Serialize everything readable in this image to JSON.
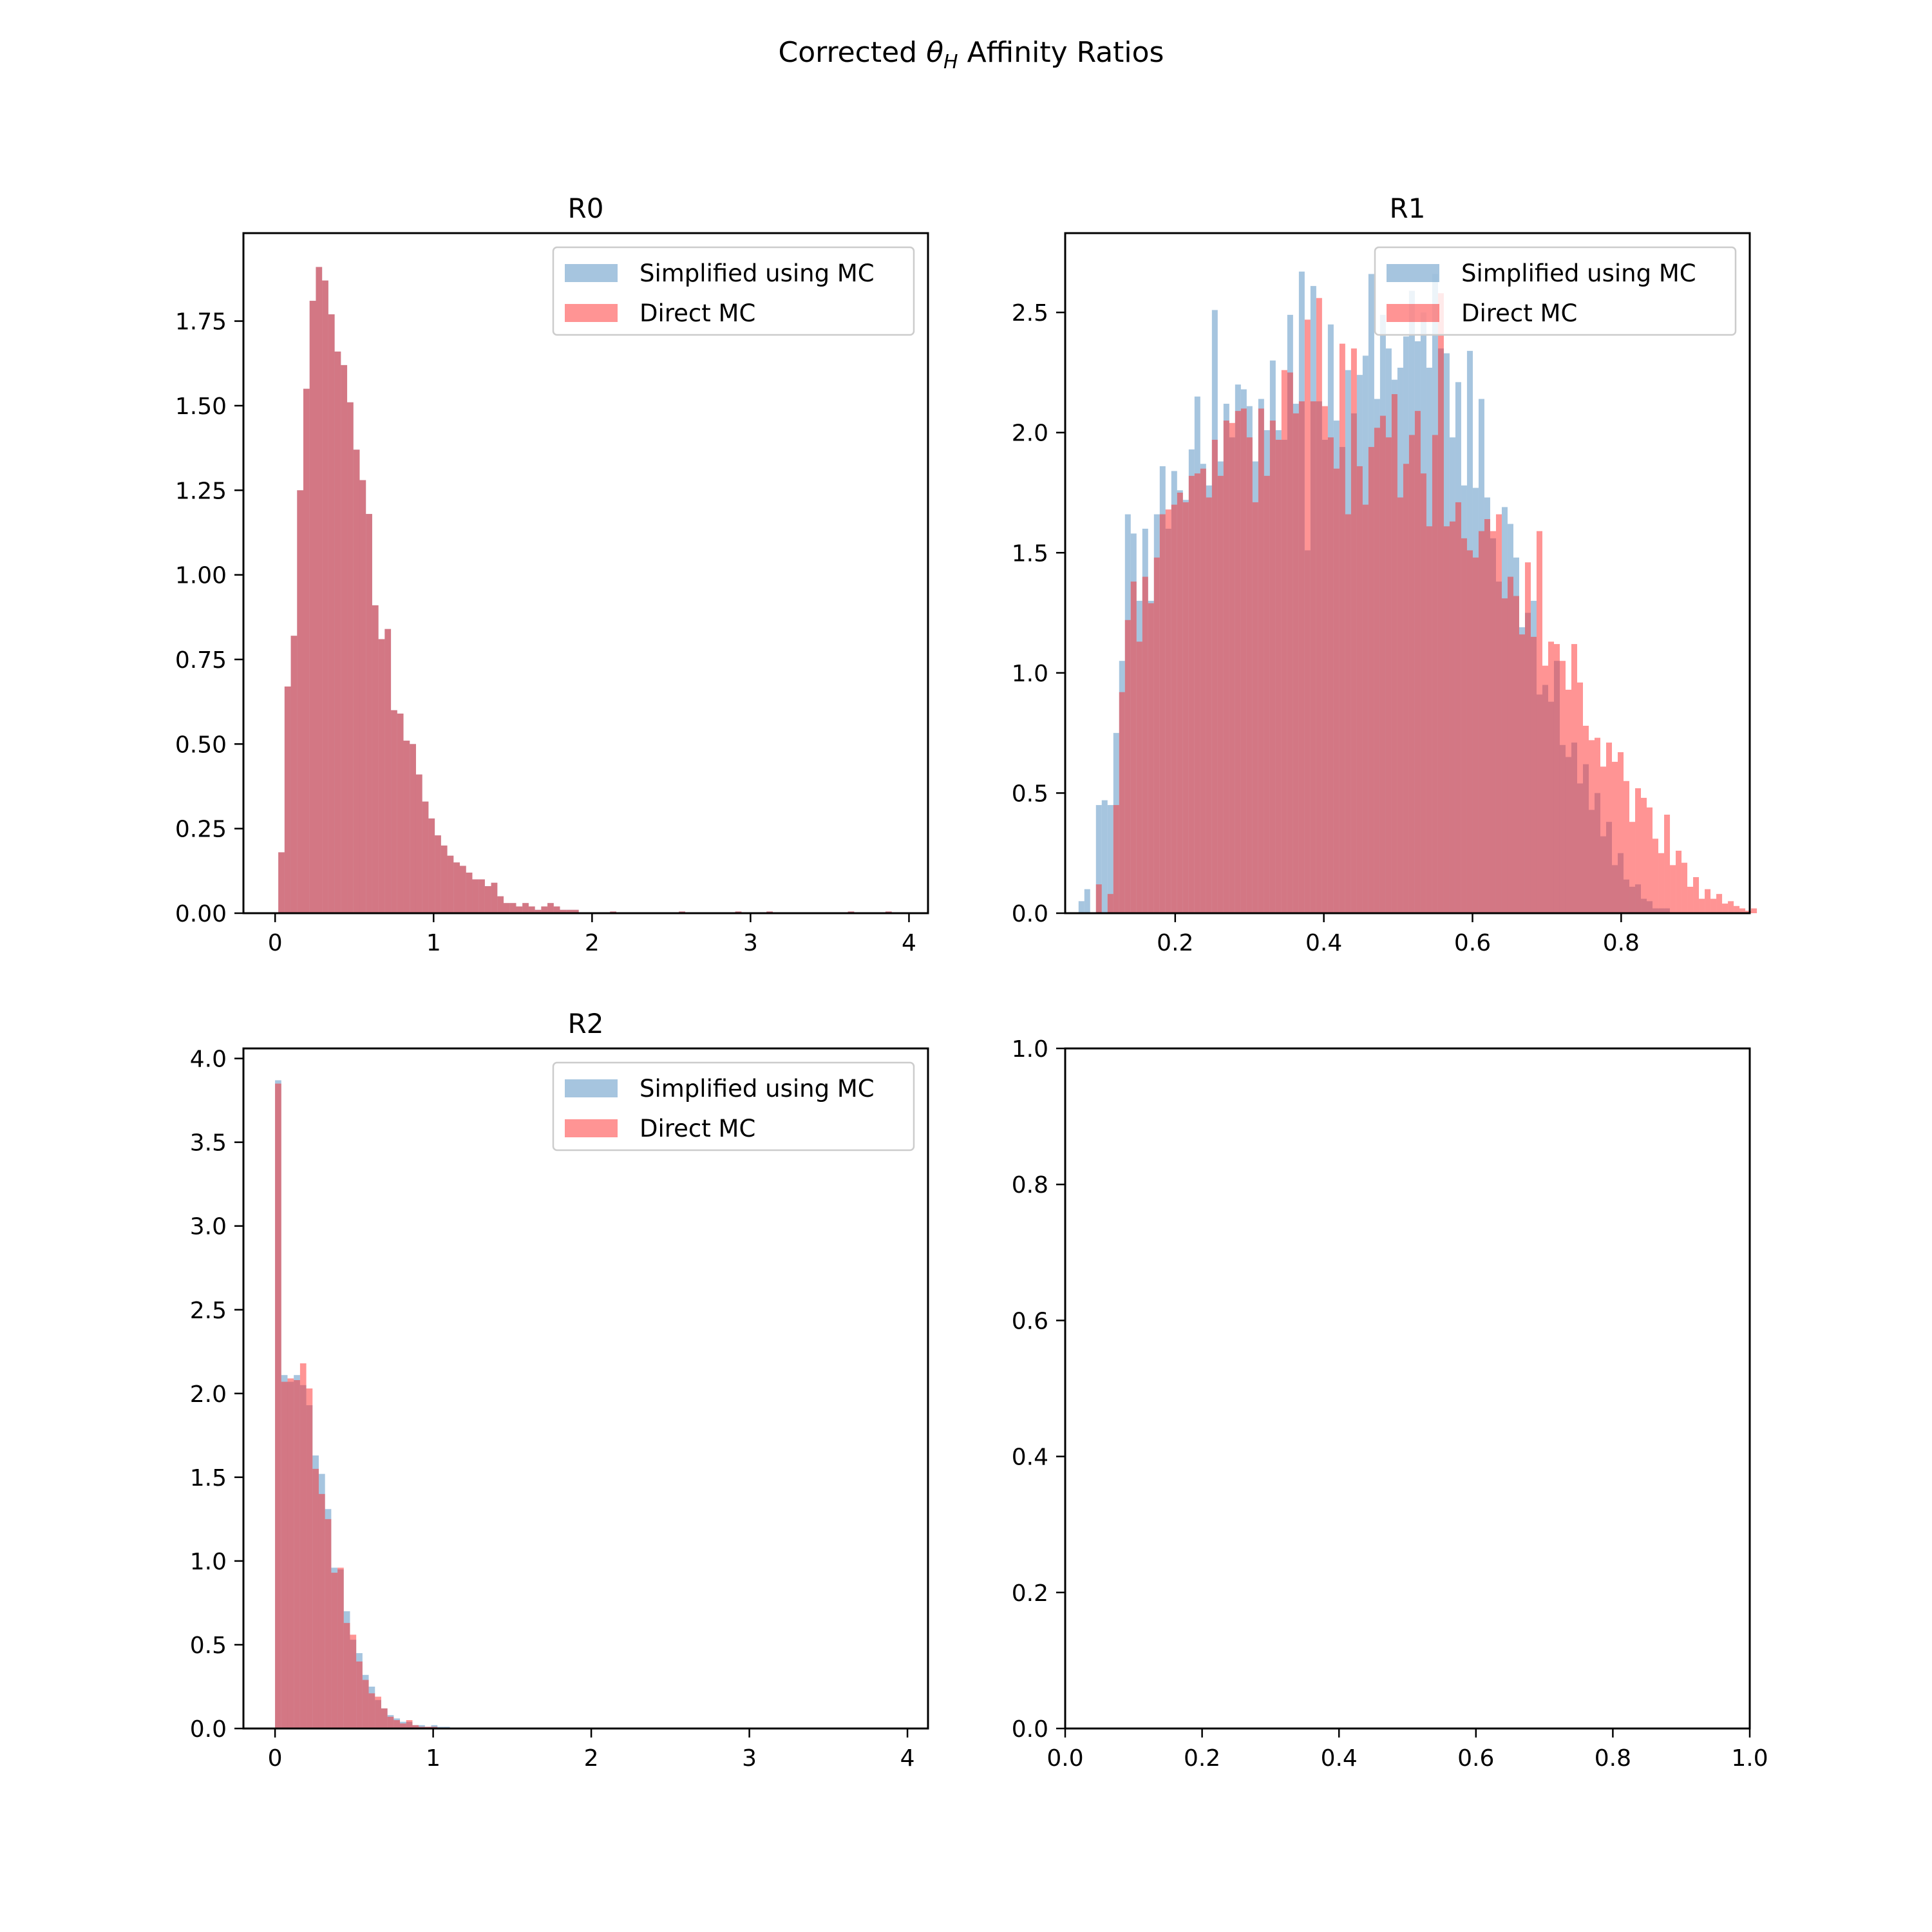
{
  "figure": {
    "title_pre": "Corrected ",
    "title_theta": "θ",
    "title_sub": "H",
    "title_post": " Affinity Ratios"
  },
  "colors": {
    "simplified": "#6a9ec9",
    "direct": "#ff2a2a",
    "overlap": "#c97985"
  },
  "chart_data": [
    {
      "type": "histogram",
      "title": "R0",
      "xlim": [
        -0.2,
        4.12
      ],
      "ylim": [
        0,
        2.01
      ],
      "xticks": [
        0,
        1,
        2,
        3,
        4
      ],
      "xtick_labels": [
        "0",
        "1",
        "2",
        "3",
        "4"
      ],
      "yticks": [
        0,
        0.25,
        0.5,
        0.75,
        1.0,
        1.25,
        1.5,
        1.75
      ],
      "ytick_labels": [
        "0.00",
        "0.25",
        "0.50",
        "0.75",
        "1.00",
        "1.25",
        "1.50",
        "1.75"
      ],
      "legend": {
        "position": "upper right",
        "entries": [
          "Simplified using MC",
          "Direct MC"
        ]
      },
      "bin_start": 0.02,
      "bin_width": 0.0395,
      "series": [
        {
          "name": "Simplified using MC",
          "values": [
            0.18,
            0.67,
            0.82,
            1.25,
            1.55,
            1.81,
            1.91,
            1.87,
            1.77,
            1.66,
            1.62,
            1.51,
            1.37,
            1.28,
            1.18,
            0.91,
            0.81,
            0.84,
            0.6,
            0.59,
            0.51,
            0.5,
            0.41,
            0.33,
            0.28,
            0.23,
            0.2,
            0.17,
            0.15,
            0.14,
            0.12,
            0.1,
            0.1,
            0.08,
            0.09,
            0.05,
            0.03,
            0.03,
            0.02,
            0.03,
            0.02,
            0.01,
            0.02,
            0.03,
            0.02,
            0.01,
            0.01,
            0.01,
            0.0,
            0.0,
            0.0,
            0.0,
            0.0,
            0.005,
            0.0,
            0.0,
            0.0,
            0.0,
            0.0,
            0.0,
            0.0,
            0.0,
            0.0,
            0.0,
            0.005,
            0.0,
            0.0,
            0.0,
            0.0,
            0.0,
            0.0,
            0.0,
            0.0,
            0.005,
            0.0,
            0.0,
            0.0,
            0.0,
            0.005,
            0.0,
            0.0,
            0.0,
            0.0,
            0.0,
            0.0,
            0.0,
            0.0,
            0.0,
            0.0,
            0.0,
            0.0,
            0.005,
            0.0,
            0.0,
            0.0,
            0.0,
            0.0,
            0.005,
            0.0,
            0.0
          ]
        },
        {
          "name": "Direct MC",
          "values": [
            0.18,
            0.67,
            0.82,
            1.25,
            1.55,
            1.81,
            1.91,
            1.87,
            1.77,
            1.66,
            1.62,
            1.51,
            1.37,
            1.28,
            1.18,
            0.91,
            0.81,
            0.84,
            0.6,
            0.59,
            0.51,
            0.5,
            0.41,
            0.33,
            0.28,
            0.23,
            0.2,
            0.17,
            0.15,
            0.14,
            0.12,
            0.1,
            0.1,
            0.08,
            0.09,
            0.05,
            0.03,
            0.03,
            0.02,
            0.03,
            0.02,
            0.01,
            0.02,
            0.03,
            0.02,
            0.01,
            0.01,
            0.01,
            0.0,
            0.0,
            0.0,
            0.0,
            0.0,
            0.005,
            0.0,
            0.0,
            0.0,
            0.0,
            0.0,
            0.0,
            0.0,
            0.0,
            0.0,
            0.0,
            0.005,
            0.0,
            0.0,
            0.0,
            0.0,
            0.0,
            0.0,
            0.0,
            0.0,
            0.005,
            0.0,
            0.0,
            0.0,
            0.0,
            0.005,
            0.0,
            0.0,
            0.0,
            0.0,
            0.0,
            0.0,
            0.0,
            0.0,
            0.0,
            0.0,
            0.0,
            0.0,
            0.005,
            0.0,
            0.0,
            0.0,
            0.0,
            0.0,
            0.005,
            0.0,
            0.0
          ]
        }
      ]
    },
    {
      "type": "histogram",
      "title": "R1",
      "xlim": [
        0.052,
        0.973
      ],
      "ylim": [
        0,
        2.83
      ],
      "xticks": [
        0.2,
        0.4,
        0.6,
        0.8
      ],
      "xtick_labels": [
        "0.2",
        "0.4",
        "0.6",
        "0.8"
      ],
      "yticks": [
        0,
        0.5,
        1.0,
        1.5,
        2.0,
        2.5
      ],
      "ytick_labels": [
        "0.0",
        "0.5",
        "1.0",
        "1.5",
        "2.0",
        "2.5"
      ],
      "legend": {
        "position": "upper right",
        "entries": [
          "Simplified using MC",
          "Direct MC"
        ]
      },
      "bin_start": 0.07,
      "bin_width": 0.0078,
      "series": [
        {
          "name": "Simplified using MC",
          "values": [
            0.05,
            0.1,
            0.0,
            0.45,
            0.47,
            0.45,
            0.75,
            1.05,
            1.66,
            1.58,
            1.3,
            1.6,
            1.3,
            1.66,
            1.86,
            1.6,
            1.84,
            1.76,
            1.72,
            1.93,
            2.15,
            1.87,
            1.78,
            2.51,
            1.88,
            2.12,
            1.98,
            2.2,
            2.18,
            2.11,
            1.88,
            2.14,
            2.01,
            2.3,
            2.01,
            1.97,
            2.49,
            2.12,
            2.67,
            1.51,
            2.61,
            2.13,
            1.97,
            2.45,
            2.05,
            1.94,
            2.26,
            2.08,
            2.24,
            2.32,
            2.66,
            2.14,
            2.49,
            2.35,
            2.22,
            2.27,
            2.4,
            2.59,
            2.38,
            2.5,
            2.27,
            2.66,
            2.35,
            2.33,
            1.98,
            2.21,
            1.78,
            2.34,
            1.77,
            2.14,
            1.73,
            1.56,
            1.38,
            1.69,
            1.62,
            1.48,
            1.19,
            1.25,
            1.3,
            0.91,
            0.95,
            0.88,
            1.05,
            0.7,
            0.65,
            0.71,
            0.54,
            0.62,
            0.43,
            0.5,
            0.32,
            0.38,
            0.2,
            0.25,
            0.14,
            0.11,
            0.12,
            0.06,
            0.05,
            0.02,
            0.02,
            0.02,
            0.0,
            0.0,
            0.0,
            0.0,
            0.0,
            0.0,
            0.0,
            0.0,
            0.0,
            0.0,
            0.0,
            0.0,
            0.0,
            0.0,
            0.0
          ]
        },
        {
          "name": "Direct MC",
          "values": [
            0.0,
            0.0,
            0.0,
            0.12,
            0.0,
            0.08,
            0.45,
            0.92,
            1.22,
            1.38,
            1.13,
            1.4,
            1.29,
            1.48,
            1.66,
            1.68,
            1.7,
            1.75,
            1.71,
            1.82,
            1.83,
            1.85,
            1.73,
            1.97,
            1.82,
            2.05,
            2.04,
            2.09,
            2.1,
            1.98,
            1.71,
            2.1,
            1.82,
            2.05,
            1.97,
            2.26,
            2.25,
            2.08,
            2.13,
            2.47,
            2.13,
            2.56,
            2.11,
            1.98,
            1.85,
            2.37,
            1.66,
            2.35,
            1.86,
            1.7,
            1.94,
            2.02,
            2.07,
            1.98,
            2.16,
            1.73,
            1.87,
            1.99,
            2.09,
            1.83,
            1.61,
            1.99,
            2.58,
            1.61,
            1.63,
            1.71,
            1.56,
            1.51,
            1.48,
            1.59,
            1.64,
            1.59,
            1.66,
            1.31,
            1.4,
            1.32,
            1.16,
            1.46,
            1.15,
            1.59,
            1.03,
            1.13,
            1.12,
            1.05,
            0.93,
            1.12,
            0.96,
            0.78,
            0.72,
            0.73,
            0.61,
            0.71,
            0.63,
            0.67,
            0.55,
            0.38,
            0.52,
            0.48,
            0.44,
            0.31,
            0.25,
            0.41,
            0.2,
            0.26,
            0.21,
            0.11,
            0.15,
            0.06,
            0.1,
            0.06,
            0.08,
            0.04,
            0.05,
            0.03,
            0.02,
            0.01,
            0.02
          ]
        }
      ]
    },
    {
      "type": "histogram",
      "title": "R2",
      "xlim": [
        -0.2,
        4.13
      ],
      "ylim": [
        0,
        4.06
      ],
      "xticks": [
        0,
        1,
        2,
        3,
        4
      ],
      "xtick_labels": [
        "0",
        "1",
        "2",
        "3",
        "4"
      ],
      "yticks": [
        0,
        0.5,
        1.0,
        1.5,
        2.0,
        2.5,
        3.0,
        3.5,
        4.0
      ],
      "ytick_labels": [
        "0.0",
        "0.5",
        "1.0",
        "1.5",
        "2.0",
        "2.5",
        "3.0",
        "3.5",
        "4.0"
      ],
      "legend": {
        "position": "upper right",
        "entries": [
          "Simplified using MC",
          "Direct MC"
        ]
      },
      "bin_start": 0.0,
      "bin_width": 0.0395,
      "series": [
        {
          "name": "Simplified using MC",
          "values": [
            3.87,
            2.11,
            2.07,
            2.11,
            2.05,
            1.93,
            1.63,
            1.52,
            1.31,
            0.96,
            0.95,
            0.7,
            0.53,
            0.45,
            0.32,
            0.25,
            0.17,
            0.12,
            0.08,
            0.06,
            0.04,
            0.04,
            0.02,
            0.02,
            0.01,
            0.02,
            0.01,
            0.01,
            0.005,
            0.0,
            0.0,
            0.005,
            0.0,
            0.005,
            0.0,
            0.0,
            0.0,
            0.0,
            0.0,
            0.0,
            0.0,
            0.0,
            0.0,
            0.0,
            0.0,
            0.0,
            0.0,
            0.0,
            0.0,
            0.0
          ]
        },
        {
          "name": "Direct MC",
          "values": [
            3.85,
            2.07,
            2.09,
            2.08,
            2.18,
            2.03,
            1.55,
            1.4,
            1.25,
            0.93,
            0.96,
            0.63,
            0.56,
            0.4,
            0.29,
            0.21,
            0.19,
            0.12,
            0.07,
            0.05,
            0.03,
            0.05,
            0.02,
            0.01,
            0.01,
            0.01,
            0.005,
            0.005,
            0.0,
            0.0,
            0.005,
            0.0,
            0.0,
            0.0,
            0.0,
            0.0,
            0.0,
            0.0,
            0.0,
            0.0,
            0.0,
            0.0,
            0.0,
            0.0,
            0.0,
            0.0,
            0.0,
            0.0,
            0.0,
            0.0
          ]
        }
      ]
    },
    {
      "type": "empty",
      "title": "",
      "xlim": [
        0,
        1
      ],
      "ylim": [
        0,
        1
      ],
      "xticks": [
        0,
        0.2,
        0.4,
        0.6,
        0.8,
        1.0
      ],
      "xtick_labels": [
        "0.0",
        "0.2",
        "0.4",
        "0.6",
        "0.8",
        "1.0"
      ],
      "yticks": [
        0,
        0.2,
        0.4,
        0.6,
        0.8,
        1.0
      ],
      "ytick_labels": [
        "0.0",
        "0.2",
        "0.4",
        "0.6",
        "0.8",
        "1.0"
      ]
    }
  ]
}
